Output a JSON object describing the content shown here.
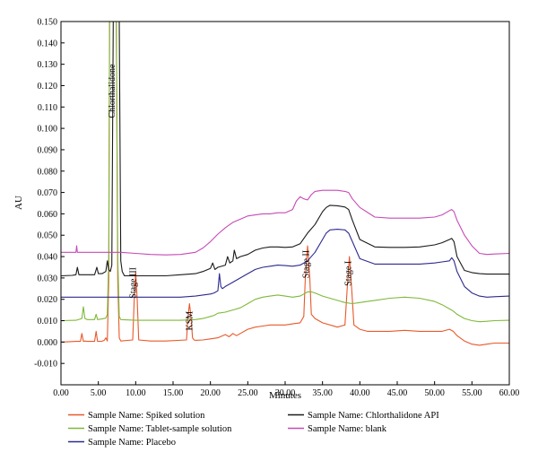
{
  "chart_data": {
    "type": "line",
    "title": "",
    "xlabel": "Minutes",
    "ylabel": "AU",
    "xlim": [
      0,
      60
    ],
    "ylim": [
      -0.02,
      0.15
    ],
    "x_ticks": [
      "0.00",
      "5.00",
      "10.00",
      "15.00",
      "20.00",
      "25.00",
      "30.00",
      "35.00",
      "40.00",
      "45.00",
      "50.00",
      "55.00",
      "60.00"
    ],
    "y_ticks": [
      "-0.010",
      "0.000",
      "0.010",
      "0.020",
      "0.030",
      "0.040",
      "0.050",
      "0.060",
      "0.070",
      "0.080",
      "0.090",
      "0.100",
      "0.110",
      "0.120",
      "0.130",
      "0.140",
      "0.150"
    ],
    "grid": false,
    "legend_position": "bottom",
    "annotations": [
      {
        "text": "Chlorthalidone",
        "x": 7.2,
        "y": 0.13
      },
      {
        "text": "Stage III",
        "x": 10.0,
        "y": 0.035
      },
      {
        "text": "KSM",
        "x": 17.6,
        "y": 0.0145
      },
      {
        "text": "Stage II",
        "x": 33.2,
        "y": 0.043
      },
      {
        "text": "Stage I",
        "x": 38.8,
        "y": 0.038
      }
    ],
    "series": [
      {
        "name": "Sample Name: Spiked solution",
        "color": "#e8592a",
        "x": [
          0,
          2,
          2.6,
          2.8,
          3.0,
          3.2,
          3.5,
          4.5,
          4.7,
          4.9,
          5.5,
          5.8,
          6.0,
          6.2,
          6.4,
          6.5,
          6.6,
          6.8,
          7.0,
          7.2,
          7.4,
          7.6,
          7.8,
          8.0,
          9.6,
          9.8,
          10.0,
          10.2,
          10.4,
          12,
          14,
          16.8,
          17.0,
          17.2,
          17.4,
          17.6,
          17.8,
          18.0,
          19,
          20,
          21,
          22,
          22.5,
          23,
          23.5,
          24,
          25,
          26,
          27,
          28,
          29,
          30,
          31,
          32,
          32.5,
          32.7,
          33.0,
          33.3,
          33.5,
          34,
          35,
          37,
          38.0,
          38.3,
          38.6,
          38.9,
          39.2,
          40,
          41,
          42,
          44,
          46,
          48,
          50,
          51,
          52,
          52.5,
          53,
          54,
          55,
          56,
          57,
          58,
          60
        ],
        "y": [
          0,
          0.0003,
          0.0003,
          0.004,
          0.0003,
          0.0005,
          0.0003,
          0.0003,
          0.005,
          0.0003,
          0.0004,
          0.0008,
          0.002,
          0.0005,
          0.03,
          0.15,
          0.15,
          0.15,
          0.15,
          0.15,
          0.15,
          0.03,
          0.002,
          0.0005,
          0.001,
          0.02,
          0.033,
          0.02,
          0.001,
          0.0005,
          0.0005,
          0.001,
          0.012,
          0.018,
          0.012,
          0.002,
          0.001,
          0.0008,
          0.001,
          0.0015,
          0.002,
          0.0035,
          0.0025,
          0.004,
          0.003,
          0.004,
          0.006,
          0.007,
          0.0075,
          0.008,
          0.008,
          0.008,
          0.0085,
          0.009,
          0.012,
          0.03,
          0.045,
          0.03,
          0.013,
          0.011,
          0.009,
          0.007,
          0.008,
          0.025,
          0.04,
          0.025,
          0.008,
          0.006,
          0.005,
          0.005,
          0.005,
          0.0055,
          0.005,
          0.005,
          0.005,
          0.006,
          0.005,
          0.003,
          0.0005,
          -0.001,
          -0.0015,
          -0.001,
          -0.0005,
          -0.0005
        ]
      },
      {
        "name": "Sample Name: Tablet-sample solution",
        "color": "#7fb83a",
        "x": [
          0,
          2,
          2.8,
          3.0,
          3.2,
          3.5,
          4.5,
          4.7,
          4.9,
          5.5,
          6.0,
          6.2,
          6.4,
          6.5,
          6.6,
          6.8,
          7.0,
          7.2,
          7.4,
          7.6,
          7.8,
          8.0,
          10,
          12,
          14,
          16,
          18,
          19,
          20,
          20.5,
          21,
          22,
          23,
          24,
          25,
          26,
          27,
          28,
          29,
          30,
          31,
          32,
          32.5,
          33,
          33.5,
          34,
          35,
          36,
          37,
          38,
          39,
          40,
          41,
          42,
          44,
          46,
          48,
          50,
          51,
          52,
          52.5,
          53,
          54,
          55,
          56,
          57,
          58,
          60
        ],
        "y": [
          0.01,
          0.0102,
          0.011,
          0.0165,
          0.011,
          0.0105,
          0.0105,
          0.013,
          0.0105,
          0.0108,
          0.0112,
          0.013,
          0.04,
          0.15,
          0.15,
          0.15,
          0.15,
          0.15,
          0.15,
          0.04,
          0.012,
          0.0105,
          0.0102,
          0.0102,
          0.0102,
          0.0102,
          0.0105,
          0.011,
          0.012,
          0.0125,
          0.0135,
          0.014,
          0.015,
          0.016,
          0.018,
          0.02,
          0.021,
          0.0215,
          0.022,
          0.0215,
          0.021,
          0.0215,
          0.0225,
          0.0235,
          0.0235,
          0.023,
          0.0215,
          0.0205,
          0.0195,
          0.0185,
          0.018,
          0.0185,
          0.019,
          0.0195,
          0.0205,
          0.021,
          0.0205,
          0.019,
          0.0175,
          0.0155,
          0.0145,
          0.013,
          0.011,
          0.01,
          0.0095,
          0.0097,
          0.01,
          0.0102
        ]
      },
      {
        "name": "Sample Name: Placebo",
        "color": "#2c2a8e",
        "x": [
          0,
          2,
          4,
          6,
          8,
          10,
          12,
          14,
          16,
          18,
          19,
          20,
          20.5,
          21,
          21.2,
          21.4,
          21.6,
          22,
          23,
          24,
          25,
          26,
          27,
          28,
          29,
          30,
          31,
          32,
          33,
          34,
          35,
          35.5,
          36,
          37,
          38,
          38.5,
          39,
          40,
          42,
          44,
          46,
          48,
          50,
          51,
          52,
          52.3,
          52.6,
          53,
          54,
          55,
          56,
          57,
          58,
          60
        ],
        "y": [
          0.021,
          0.021,
          0.021,
          0.021,
          0.021,
          0.021,
          0.021,
          0.021,
          0.021,
          0.0215,
          0.022,
          0.0225,
          0.023,
          0.024,
          0.032,
          0.026,
          0.025,
          0.026,
          0.028,
          0.03,
          0.032,
          0.034,
          0.035,
          0.0355,
          0.036,
          0.0358,
          0.0355,
          0.036,
          0.038,
          0.042,
          0.048,
          0.051,
          0.0525,
          0.0528,
          0.0525,
          0.051,
          0.047,
          0.039,
          0.0365,
          0.0365,
          0.0365,
          0.0365,
          0.037,
          0.0375,
          0.038,
          0.0395,
          0.038,
          0.033,
          0.026,
          0.023,
          0.0215,
          0.021,
          0.0212,
          0.0215
        ]
      },
      {
        "name": "Sample Name: Chlorthalidone API",
        "color": "#1a1a1a",
        "x": [
          0,
          1.5,
          2,
          2.2,
          2.4,
          3,
          4.5,
          4.8,
          5,
          5.5,
          6.0,
          6.2,
          6.4,
          6.6,
          6.8,
          7.0,
          7.2,
          7.4,
          7.6,
          7.8,
          8.0,
          8.2,
          8.5,
          10,
          12,
          14,
          16,
          18,
          19,
          20,
          20.3,
          20.6,
          21,
          22,
          22.3,
          22.6,
          23,
          23.2,
          23.5,
          24,
          25,
          26,
          27,
          28,
          29,
          30,
          31,
          32,
          33,
          34,
          35,
          35.5,
          36,
          37,
          38,
          38.5,
          39,
          40,
          42,
          44,
          46,
          48,
          50,
          51,
          52,
          52.3,
          52.6,
          53,
          54,
          55,
          56,
          57,
          58,
          60
        ],
        "y": [
          0.031,
          0.0312,
          0.0315,
          0.035,
          0.0315,
          0.0315,
          0.0315,
          0.035,
          0.032,
          0.032,
          0.033,
          0.038,
          0.034,
          0.033,
          0.036,
          0.15,
          0.15,
          0.15,
          0.15,
          0.15,
          0.038,
          0.033,
          0.031,
          0.031,
          0.031,
          0.031,
          0.0315,
          0.032,
          0.033,
          0.0345,
          0.037,
          0.034,
          0.035,
          0.036,
          0.04,
          0.037,
          0.038,
          0.043,
          0.039,
          0.04,
          0.041,
          0.043,
          0.044,
          0.0445,
          0.0445,
          0.0443,
          0.0445,
          0.046,
          0.051,
          0.055,
          0.061,
          0.063,
          0.064,
          0.0638,
          0.0632,
          0.062,
          0.057,
          0.048,
          0.0445,
          0.0443,
          0.0443,
          0.0445,
          0.0455,
          0.0465,
          0.048,
          0.0485,
          0.047,
          0.04,
          0.0335,
          0.0325,
          0.032,
          0.0318,
          0.0318,
          0.0318
        ]
      },
      {
        "name": "Sample Name: blank",
        "color": "#c64ab6",
        "x": [
          0,
          2,
          2.1,
          2.2,
          4,
          6,
          8,
          10,
          12,
          14,
          16,
          18,
          19,
          20,
          21,
          22,
          23,
          24,
          25,
          26,
          27,
          28,
          29,
          30,
          31,
          31.5,
          32,
          32.5,
          33,
          33.5,
          34,
          35,
          37,
          38,
          38.5,
          39,
          40,
          42,
          44,
          46,
          48,
          50,
          51,
          52,
          52.3,
          52.6,
          53,
          54,
          55,
          56,
          57,
          58,
          60
        ],
        "y": [
          0.042,
          0.042,
          0.045,
          0.042,
          0.042,
          0.042,
          0.042,
          0.0415,
          0.041,
          0.0408,
          0.041,
          0.042,
          0.044,
          0.047,
          0.0505,
          0.0535,
          0.056,
          0.0575,
          0.059,
          0.0595,
          0.06,
          0.06,
          0.0605,
          0.0605,
          0.062,
          0.066,
          0.068,
          0.067,
          0.0665,
          0.069,
          0.0705,
          0.071,
          0.071,
          0.0705,
          0.07,
          0.067,
          0.063,
          0.0585,
          0.058,
          0.058,
          0.058,
          0.0585,
          0.0595,
          0.0615,
          0.062,
          0.061,
          0.057,
          0.05,
          0.045,
          0.0415,
          0.041,
          0.0412,
          0.0415
        ]
      }
    ]
  }
}
